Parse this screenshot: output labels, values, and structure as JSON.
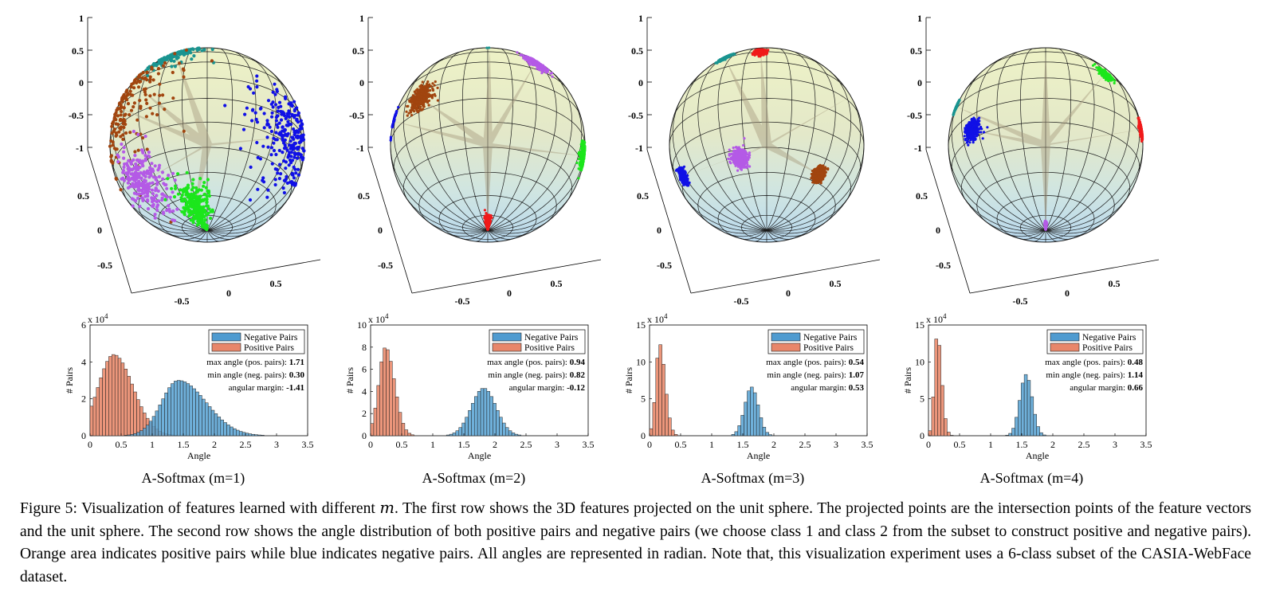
{
  "figure": {
    "panels": [
      {
        "subcaption": "A-Softmax (m=1)",
        "stats": {
          "max_label": "max angle (pos. pairs): ",
          "max": "1.71",
          "min_label": "min angle (neg. pairs): ",
          "min": "0.30",
          "margin_label": "angular margin: ",
          "margin": "-1.41"
        },
        "hist_ymax": 6,
        "hist_yticks": [
          "0",
          "2",
          "4",
          "6"
        ],
        "sphere_clusters": [
          {
            "class": "teal",
            "lon": -35,
            "lat": 55,
            "spread": 0.28,
            "dense": false
          },
          {
            "class": "red",
            "lon": -95,
            "lat": 45,
            "spread": 0.3,
            "dense": false
          },
          {
            "class": "brown",
            "lon": -70,
            "lat": 15,
            "spread": 0.45,
            "dense": false
          },
          {
            "class": "blue",
            "lon": 60,
            "lat": -10,
            "spread": 0.32,
            "dense": false
          },
          {
            "class": "purple",
            "lon": -60,
            "lat": -40,
            "spread": 0.22,
            "dense": false
          },
          {
            "class": "green",
            "lon": -20,
            "lat": -68,
            "spread": 0.2,
            "dense": false
          }
        ]
      },
      {
        "subcaption": "A-Softmax (m=2)",
        "stats": {
          "max_label": "max angle (pos. pairs): ",
          "max": "0.94",
          "min_label": "min angle (neg. pairs): ",
          "min": "0.82",
          "margin_label": "angular margin: ",
          "margin": "-0.12"
        },
        "hist_ymax": 10,
        "hist_yticks": [
          "0",
          "2",
          "4",
          "6",
          "8",
          "10"
        ],
        "sphere_clusters": [
          {
            "class": "teal",
            "lon": 5,
            "lat": 75,
            "spread": 0.18,
            "dense": true
          },
          {
            "class": "purple",
            "lon": 40,
            "lat": 40,
            "spread": 0.14,
            "dense": true
          },
          {
            "class": "blue",
            "lon": -88,
            "lat": 15,
            "spread": 0.15,
            "dense": true
          },
          {
            "class": "brown",
            "lon": -45,
            "lat": 10,
            "spread": 0.14,
            "dense": true
          },
          {
            "class": "green",
            "lon": 85,
            "lat": -10,
            "spread": 0.12,
            "dense": true
          },
          {
            "class": "red",
            "lon": 0,
            "lat": -82,
            "spread": 0.13,
            "dense": true
          }
        ]
      },
      {
        "subcaption": "A-Softmax (m=3)",
        "stats": {
          "max_label": "max angle (pos. pairs): ",
          "max": "0.54",
          "min_label": "min angle (neg. pairs): ",
          "min": "1.07",
          "margin_label": "angular margin: ",
          "margin": "0.53"
        },
        "hist_ymax": 15,
        "hist_yticks": [
          "0",
          "5",
          "10",
          "15"
        ],
        "sphere_clusters": [
          {
            "class": "red",
            "lon": -5,
            "lat": 45,
            "spread": 0.08,
            "dense": true
          },
          {
            "class": "teal",
            "lon": -40,
            "lat": 48,
            "spread": 0.09,
            "dense": true
          },
          {
            "class": "green",
            "lon": 82,
            "lat": 30,
            "spread": 0.07,
            "dense": true
          },
          {
            "class": "blue",
            "lon": -78,
            "lat": -28,
            "spread": 0.08,
            "dense": true
          },
          {
            "class": "purple",
            "lon": -20,
            "lat": -35,
            "spread": 0.09,
            "dense": true
          },
          {
            "class": "brown",
            "lon": 45,
            "lat": -40,
            "spread": 0.08,
            "dense": true
          }
        ]
      },
      {
        "subcaption": "A-Softmax (m=4)",
        "stats": {
          "max_label": "max angle (pos. pairs): ",
          "max": "0.48",
          "min_label": "min angle (neg. pairs): ",
          "min": "1.14",
          "margin_label": "angular margin: ",
          "margin": "0.66"
        },
        "hist_ymax": 15,
        "hist_yticks": [
          "0",
          "5",
          "10",
          "15"
        ],
        "sphere_clusters": [
          {
            "class": "brown",
            "lon": 0,
            "lat": 78,
            "spread": 0.07,
            "dense": true
          },
          {
            "class": "green",
            "lon": 45,
            "lat": 30,
            "spread": 0.08,
            "dense": true
          },
          {
            "class": "teal",
            "lon": -78,
            "lat": 20,
            "spread": 0.07,
            "dense": true
          },
          {
            "class": "red",
            "lon": 80,
            "lat": 5,
            "spread": 0.08,
            "dense": true
          },
          {
            "class": "blue",
            "lon": -50,
            "lat": -10,
            "spread": 0.09,
            "dense": true
          },
          {
            "class": "purple",
            "lon": 0,
            "lat": -85,
            "spread": 0.07,
            "dense": true
          }
        ]
      }
    ],
    "sphere_axes": {
      "z_ticks": [
        "1",
        "0.5",
        "0",
        "-0.5",
        "-1"
      ],
      "y_ticks": [
        "0.5",
        "0",
        "-0.5"
      ],
      "x_ticks": [
        "-0.5",
        "0",
        "0.5"
      ]
    },
    "histogram_axes": {
      "xlabel": "Angle",
      "ylabel": "# Pairs",
      "scale_base": "x 10",
      "scale_exp": "4",
      "xticks": [
        "0",
        "0.5",
        "1",
        "1.5",
        "2",
        "2.5",
        "3",
        "3.5"
      ]
    },
    "legend": [
      {
        "label": "Negative Pairs",
        "color": "#4f9bd0"
      },
      {
        "label": "Positive Pairs",
        "color": "#e8866a"
      }
    ],
    "class_colors": {
      "teal": "#1a9490",
      "red": "#f01a1a",
      "brown": "#a1450f",
      "blue": "#1010e6",
      "purple": "#b45ae6",
      "green": "#1ce61c"
    }
  },
  "chart_data": [
    {
      "type": "bar",
      "title": "A-Softmax (m=1)",
      "xlabel": "Angle",
      "ylabel": "# Pairs",
      "xlim": [
        0,
        3.5
      ],
      "ylim": [
        0,
        6
      ],
      "y_scale": "x 10^4",
      "legend_position": "top-right",
      "series": [
        {
          "name": "Negative Pairs",
          "center": 1.42,
          "spread": 0.33,
          "skew": 0.35,
          "peak": 3.0,
          "range": [
            0.3,
            3.2
          ]
        },
        {
          "name": "Positive Pairs",
          "center": 0.38,
          "spread": 0.27,
          "skew": 0.15,
          "peak": 4.4,
          "range": [
            0.0,
            1.71
          ]
        }
      ]
    },
    {
      "type": "bar",
      "title": "A-Softmax (m=2)",
      "xlabel": "Angle",
      "ylabel": "# Pairs",
      "xlim": [
        0,
        3.5
      ],
      "ylim": [
        0,
        10
      ],
      "y_scale": "x 10^4",
      "legend_position": "top-right",
      "series": [
        {
          "name": "Negative Pairs",
          "center": 1.82,
          "spread": 0.2,
          "skew": 0,
          "peak": 4.3,
          "range": [
            0.82,
            2.6
          ]
        },
        {
          "name": "Positive Pairs",
          "center": 0.24,
          "spread": 0.12,
          "skew": 0.2,
          "peak": 8.0,
          "range": [
            0.0,
            0.94
          ]
        }
      ]
    },
    {
      "type": "bar",
      "title": "A-Softmax (m=3)",
      "xlabel": "Angle",
      "ylabel": "# Pairs",
      "xlim": [
        0,
        3.5
      ],
      "ylim": [
        0,
        15
      ],
      "y_scale": "x 10^4",
      "legend_position": "top-right",
      "series": [
        {
          "name": "Negative Pairs",
          "center": 1.64,
          "spread": 0.11,
          "skew": 0,
          "peak": 6.6,
          "range": [
            1.07,
            2.2
          ]
        },
        {
          "name": "Positive Pairs",
          "center": 0.16,
          "spread": 0.07,
          "skew": 0.3,
          "peak": 12.5,
          "range": [
            0.0,
            0.54
          ]
        }
      ]
    },
    {
      "type": "bar",
      "title": "A-Softmax (m=4)",
      "xlabel": "Angle",
      "ylabel": "# Pairs",
      "xlim": [
        0,
        3.5
      ],
      "ylim": [
        0,
        15
      ],
      "y_scale": "x 10^4",
      "legend_position": "top-right",
      "series": [
        {
          "name": "Negative Pairs",
          "center": 1.57,
          "spread": 0.1,
          "skew": 0,
          "peak": 8.3,
          "range": [
            1.14,
            2.0
          ]
        },
        {
          "name": "Positive Pairs",
          "center": 0.14,
          "spread": 0.055,
          "skew": 0.3,
          "peak": 13.8,
          "range": [
            0.0,
            0.48
          ]
        }
      ]
    }
  ],
  "caption": {
    "prefix": "Figure 5: Visualization of features learned with different ",
    "var": "m",
    "text": ". The first row shows the 3D features projected on the unit sphere. The projected points are the intersection points of the feature vectors and the unit sphere. The second row shows the angle distribution of both positive pairs and negative pairs (we choose class 1 and class 2 from the subset to construct positive and negative pairs). Orange area indicates positive pairs while blue indicates negative pairs. All angles are represented in radian. Note that, this visualization experiment uses a 6-class subset of the CASIA-WebFace dataset."
  }
}
